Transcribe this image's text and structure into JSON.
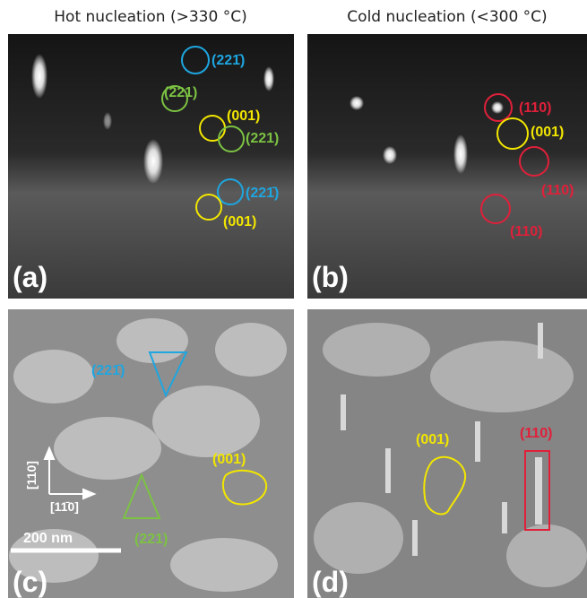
{
  "titles": {
    "left": "Hot nucleation (>330 °C)",
    "right": "Cold nucleation (<300 °C)"
  },
  "panels": [
    {
      "letter": "(a)",
      "labels": [
        "(221̄)",
        "(221)",
        "(001)",
        "(221)",
        "(221̄)",
        "(001)"
      ]
    },
    {
      "letter": "(b)",
      "labels": [
        "(110)",
        "(001)",
        "(110)",
        "(110)"
      ]
    },
    {
      "letter": "(c)",
      "labels": [
        "(221̄)",
        "(001)",
        "(221)"
      ],
      "axis_vertical": "[110]",
      "axis_horizontal": "[11̄0]",
      "scale_bar": "200 nm"
    },
    {
      "letter": "(d)",
      "labels": [
        "(001)",
        "(110)"
      ]
    }
  ]
}
